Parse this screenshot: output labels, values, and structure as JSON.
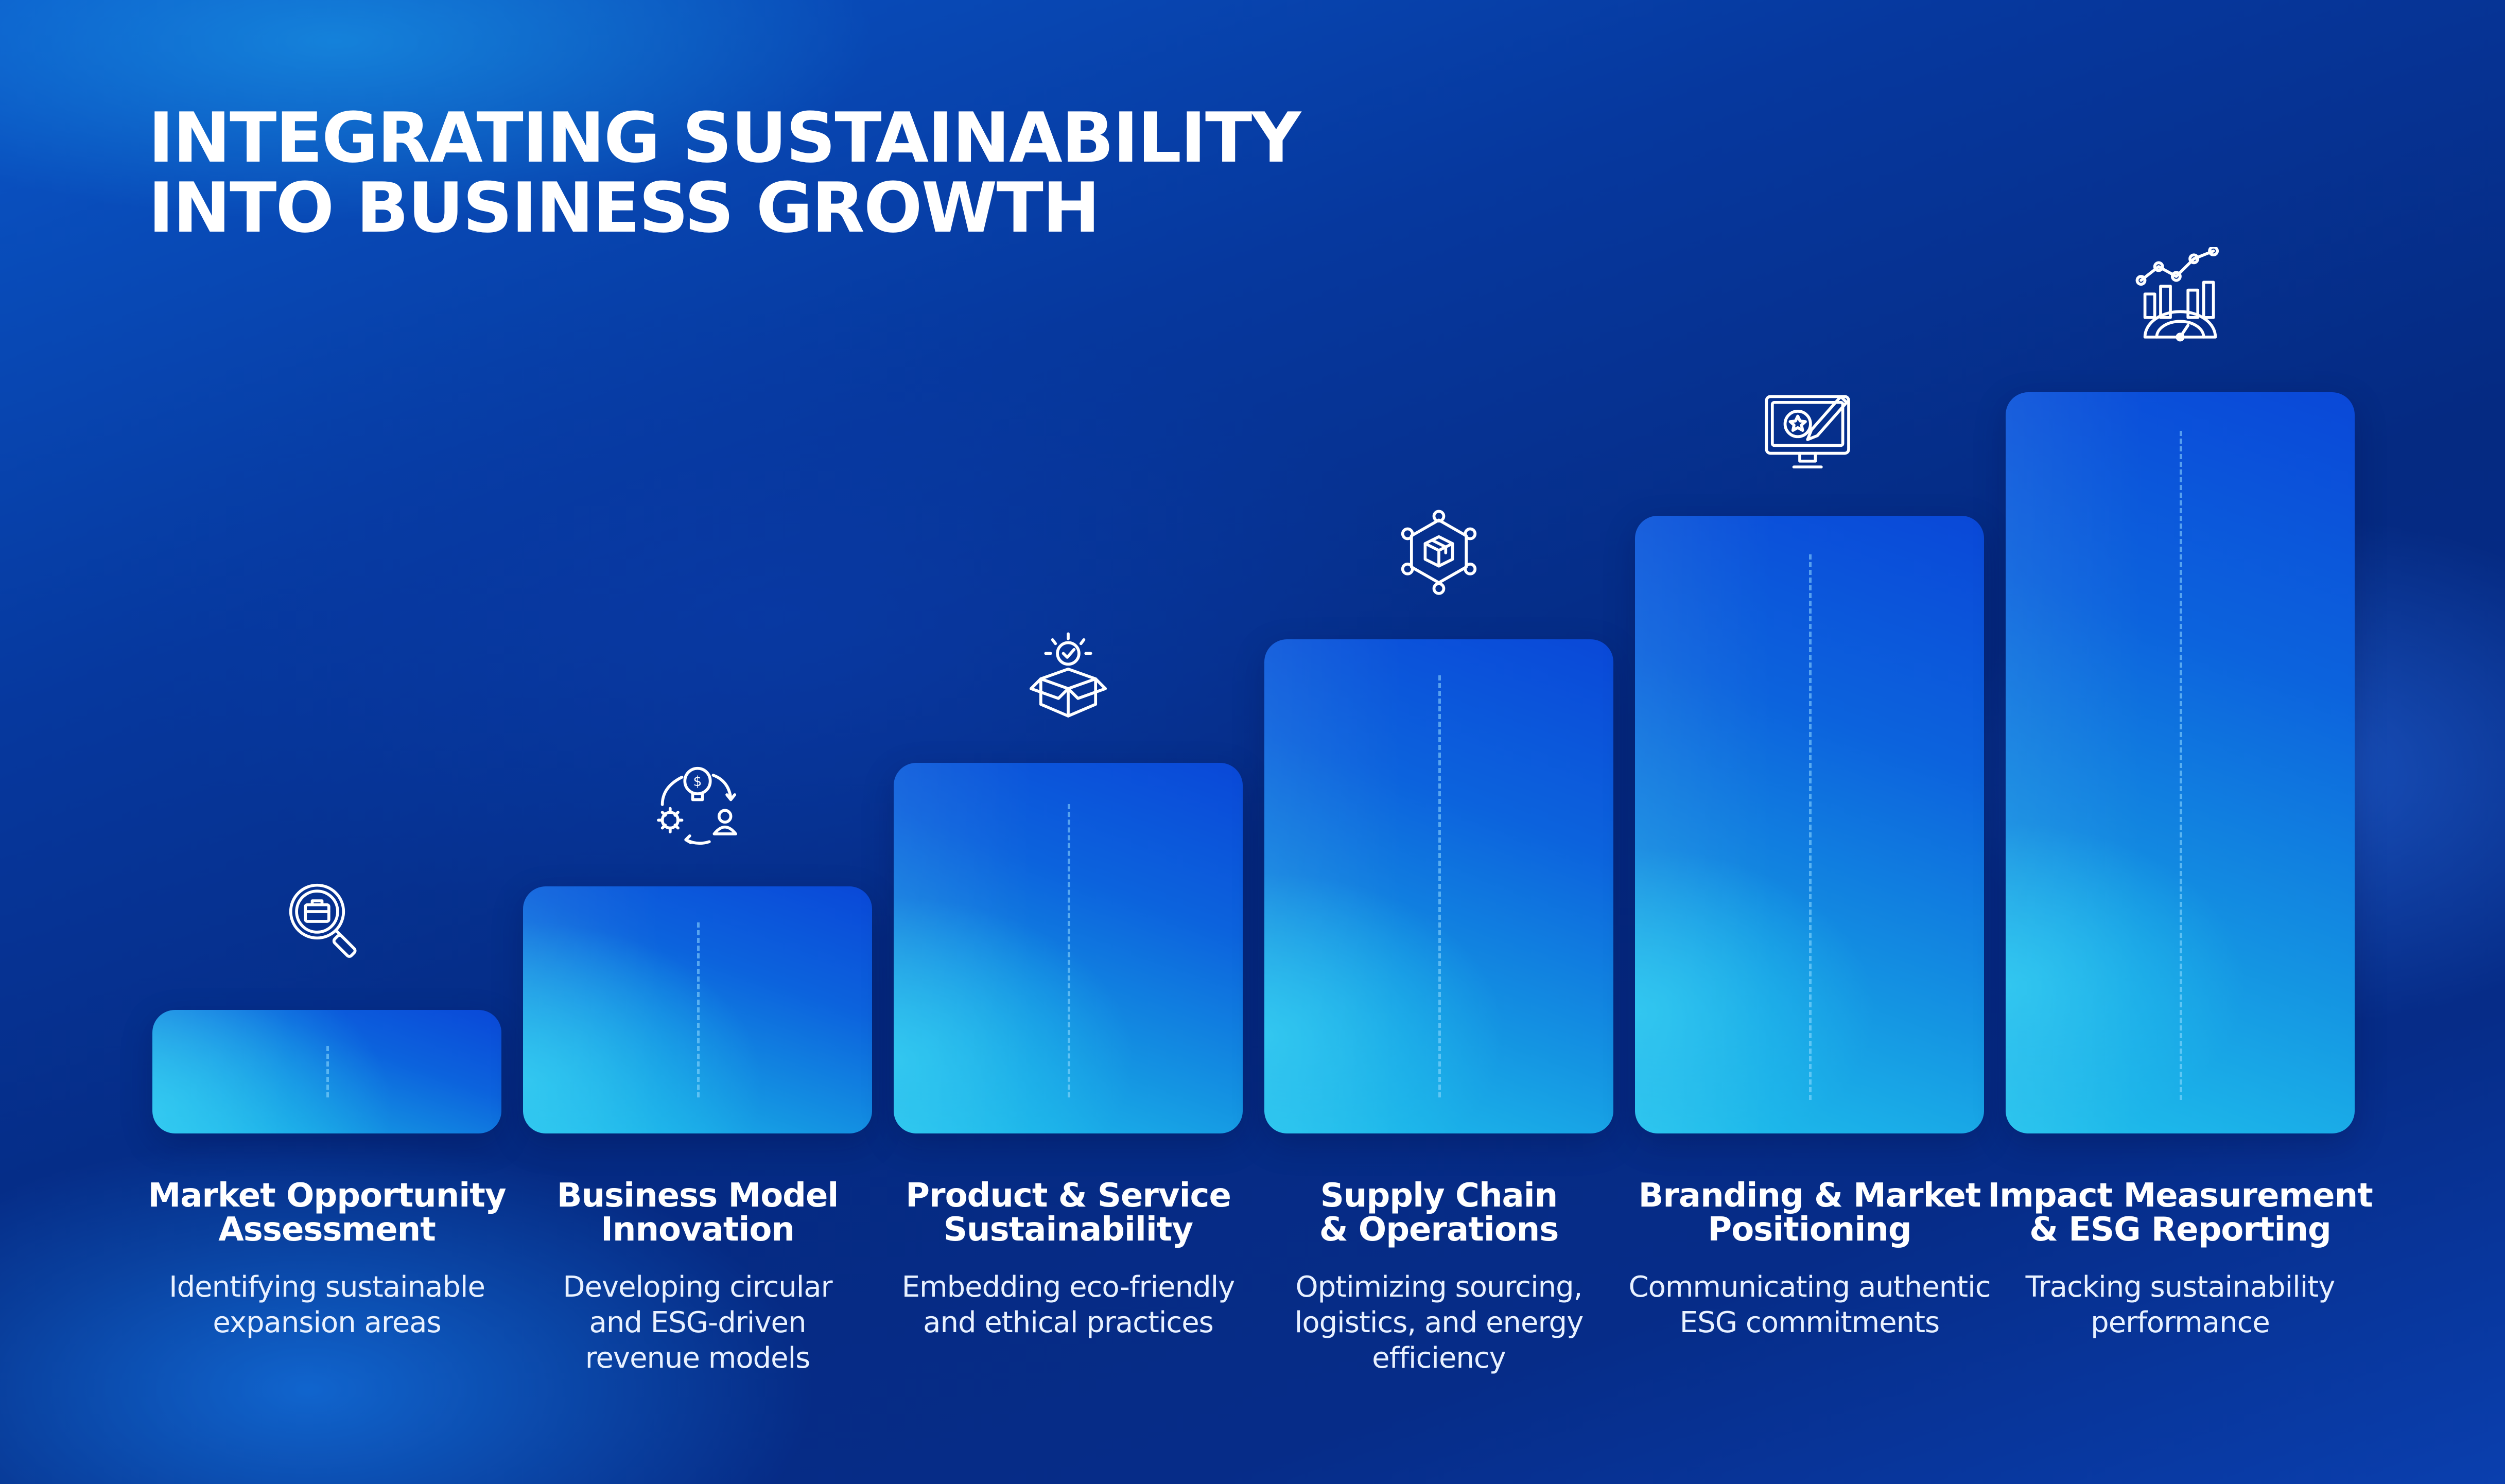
{
  "title": {
    "line1": "INTEGRATING SUSTAINABILITY",
    "line2": "INTO BUSINESS GROWTH"
  },
  "steps": [
    {
      "icon": "briefcase-search-icon",
      "title_lines": [
        "Market Opportunity",
        "Assessment"
      ],
      "desc_lines": [
        "Identifying sustainable",
        "expansion areas"
      ]
    },
    {
      "icon": "idea-cycle-icon",
      "title_lines": [
        "Business Model",
        "Innovation"
      ],
      "desc_lines": [
        "Developing circular",
        "and ESG-driven",
        "revenue models"
      ]
    },
    {
      "icon": "product-box-check-icon",
      "title_lines": [
        "Product & Service",
        "Sustainability"
      ],
      "desc_lines": [
        "Embedding eco-friendly",
        "and ethical practices"
      ]
    },
    {
      "icon": "supply-network-icon",
      "title_lines": [
        "Supply Chain",
        "& Operations"
      ],
      "desc_lines": [
        "Optimizing sourcing,",
        "logistics, and energy",
        "efficiency"
      ]
    },
    {
      "icon": "brand-monitor-icon",
      "title_lines": [
        "Branding & Market",
        "Positioning"
      ],
      "desc_lines": [
        "Communicating authentic",
        "ESG commitments"
      ]
    },
    {
      "icon": "performance-dashboard-icon",
      "title_lines": [
        "Impact Measurement",
        "& ESG Reporting"
      ],
      "desc_lines": [
        "Tracking sustainability",
        "performance"
      ]
    }
  ]
}
